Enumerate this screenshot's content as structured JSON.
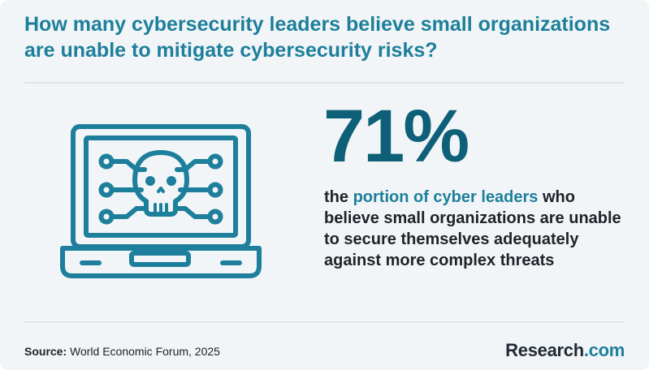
{
  "header": {
    "title": "How many cybersecurity leaders believe small organizations are unable to mitigate cybersecurity risks?"
  },
  "stat": {
    "value": "71%",
    "description_prefix": "the ",
    "description_highlight": "portion of cyber leaders",
    "description_rest": " who believe small organizations are unable to secure themselves adequately against more complex threats"
  },
  "illustration": {
    "icon": "laptop-skull-icon"
  },
  "footer": {
    "source_label": "Source:",
    "source_text": " World Economic Forum, 2025",
    "brand_name": "Research",
    "brand_tld": ".com"
  },
  "colors": {
    "background": "#f1f5f7",
    "accent": "#1d7f9b",
    "stat": "#0e5f78",
    "text": "#1f2329"
  }
}
